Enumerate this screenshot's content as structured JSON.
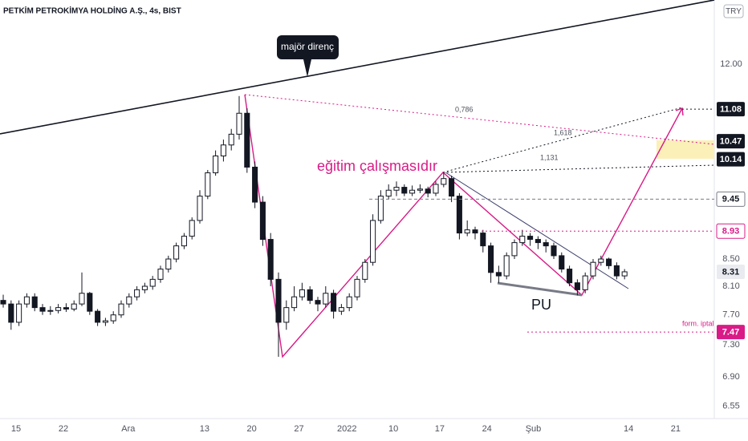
{
  "header": {
    "symbol": "PETKİM PETROKİMYA HOLDİNG A.Ş., 4s, BIST",
    "currency": "TRY"
  },
  "chart_data": {
    "type": "candlestick",
    "log_scale": true,
    "up_color": "#ffffff",
    "down_color": "#131722",
    "ohlc": [
      [
        7.9,
        7.98,
        7.8,
        7.85
      ],
      [
        7.85,
        7.9,
        7.5,
        7.6
      ],
      [
        7.6,
        7.9,
        7.55,
        7.85
      ],
      [
        7.85,
        8.0,
        7.8,
        7.95
      ],
      [
        7.95,
        8.0,
        7.75,
        7.8
      ],
      [
        7.8,
        7.85,
        7.7,
        7.75
      ],
      [
        7.75,
        7.82,
        7.7,
        7.76
      ],
      [
        7.76,
        7.85,
        7.72,
        7.8
      ],
      [
        7.8,
        7.86,
        7.74,
        7.78
      ],
      [
        7.78,
        7.9,
        7.75,
        7.85
      ],
      [
        7.85,
        8.3,
        7.82,
        8.0
      ],
      [
        8.0,
        8.02,
        7.7,
        7.75
      ],
      [
        7.75,
        7.78,
        7.55,
        7.6
      ],
      [
        7.6,
        7.66,
        7.55,
        7.62
      ],
      [
        7.62,
        7.75,
        7.58,
        7.7
      ],
      [
        7.7,
        7.9,
        7.66,
        7.85
      ],
      [
        7.85,
        8.0,
        7.8,
        7.95
      ],
      [
        7.95,
        8.1,
        7.9,
        8.05
      ],
      [
        8.05,
        8.15,
        8.0,
        8.1
      ],
      [
        8.1,
        8.25,
        8.05,
        8.2
      ],
      [
        8.2,
        8.4,
        8.15,
        8.35
      ],
      [
        8.35,
        8.55,
        8.3,
        8.5
      ],
      [
        8.5,
        8.75,
        8.45,
        8.7
      ],
      [
        8.7,
        8.9,
        8.65,
        8.85
      ],
      [
        8.85,
        9.15,
        8.8,
        9.1
      ],
      [
        9.1,
        9.6,
        9.05,
        9.5
      ],
      [
        9.5,
        9.95,
        9.45,
        9.9
      ],
      [
        9.9,
        10.3,
        9.85,
        10.2
      ],
      [
        10.2,
        10.5,
        10.1,
        10.4
      ],
      [
        10.4,
        10.7,
        10.3,
        10.6
      ],
      [
        10.6,
        11.34,
        10.5,
        11.0
      ],
      [
        11.0,
        11.1,
        9.9,
        10.0
      ],
      [
        10.0,
        10.1,
        9.3,
        9.4
      ],
      [
        9.4,
        9.5,
        8.7,
        8.8
      ],
      [
        8.8,
        8.9,
        8.1,
        8.2
      ],
      [
        8.2,
        8.3,
        7.15,
        7.6
      ],
      [
        7.6,
        7.9,
        7.5,
        7.8
      ],
      [
        7.8,
        8.1,
        7.75,
        7.95
      ],
      [
        7.95,
        8.15,
        7.9,
        8.05
      ],
      [
        8.05,
        8.1,
        7.85,
        7.9
      ],
      [
        7.9,
        7.95,
        7.75,
        7.85
      ],
      [
        7.85,
        8.1,
        7.8,
        8.0
      ],
      [
        8.0,
        8.05,
        7.65,
        7.75
      ],
      [
        7.75,
        7.85,
        7.7,
        7.8
      ],
      [
        7.8,
        8.0,
        7.75,
        7.95
      ],
      [
        7.95,
        8.25,
        7.9,
        8.2
      ],
      [
        8.2,
        8.5,
        8.15,
        8.45
      ],
      [
        8.45,
        9.2,
        8.4,
        9.1
      ],
      [
        9.1,
        9.6,
        9.05,
        9.5
      ],
      [
        9.5,
        9.7,
        9.45,
        9.6
      ],
      [
        9.6,
        9.75,
        9.5,
        9.65
      ],
      [
        9.65,
        9.7,
        9.5,
        9.55
      ],
      [
        9.55,
        9.68,
        9.5,
        9.6
      ],
      [
        9.6,
        9.7,
        9.55,
        9.62
      ],
      [
        9.62,
        9.66,
        9.48,
        9.55
      ],
      [
        9.55,
        9.75,
        9.5,
        9.7
      ],
      [
        9.7,
        9.91,
        9.65,
        9.8
      ],
      [
        9.8,
        9.85,
        9.4,
        9.5
      ],
      [
        9.5,
        9.55,
        8.8,
        8.9
      ],
      [
        8.9,
        9.1,
        8.85,
        8.95
      ],
      [
        8.95,
        9.0,
        8.8,
        8.9
      ],
      [
        8.9,
        8.95,
        8.6,
        8.7
      ],
      [
        8.7,
        8.75,
        8.15,
        8.3
      ],
      [
        8.3,
        8.4,
        8.15,
        8.25
      ],
      [
        8.25,
        8.6,
        8.2,
        8.55
      ],
      [
        8.55,
        8.8,
        8.5,
        8.75
      ],
      [
        8.75,
        8.95,
        8.7,
        8.85
      ],
      [
        8.85,
        8.9,
        8.7,
        8.8
      ],
      [
        8.8,
        8.85,
        8.65,
        8.75
      ],
      [
        8.75,
        8.8,
        8.6,
        8.7
      ],
      [
        8.7,
        8.75,
        8.5,
        8.55
      ],
      [
        8.55,
        8.6,
        8.3,
        8.35
      ],
      [
        8.35,
        8.4,
        8.1,
        8.15
      ],
      [
        8.15,
        8.2,
        7.97,
        8.05
      ],
      [
        8.05,
        8.3,
        8.0,
        8.25
      ],
      [
        8.25,
        8.5,
        8.2,
        8.45
      ],
      [
        8.45,
        8.55,
        8.4,
        8.5
      ],
      [
        8.5,
        8.52,
        8.35,
        8.4
      ],
      [
        8.4,
        8.45,
        8.2,
        8.25
      ],
      [
        8.25,
        8.35,
        8.2,
        8.31
      ]
    ],
    "xlim": [
      -0.41,
      90.41
    ],
    "xticks": [
      {
        "value": 1.63,
        "label": "15"
      },
      {
        "value": 7.65,
        "label": "22"
      },
      {
        "value": 15.9,
        "label": "Ara"
      },
      {
        "value": 25.6,
        "label": "13"
      },
      {
        "value": 31.6,
        "label": "20"
      },
      {
        "value": 37.6,
        "label": "27"
      },
      {
        "value": 43.7,
        "label": "2022"
      },
      {
        "value": 49.6,
        "label": "10"
      },
      {
        "value": 55.5,
        "label": "17"
      },
      {
        "value": 61.5,
        "label": "24"
      },
      {
        "value": 67.4,
        "label": "Şub"
      },
      {
        "value": 79.5,
        "label": "14"
      },
      {
        "value": 85.5,
        "label": "21"
      }
    ],
    "ylim": [
      6.41,
      13.44
    ],
    "yticks": [
      6.55,
      {
        "value": 6.9,
        "label": "6.90"
      },
      {
        "value": 7.3,
        "label": "7.30"
      },
      {
        "value": 7.7,
        "label": "7.70"
      },
      {
        "value": 8.1,
        "label": "8.10"
      },
      {
        "value": 8.5,
        "label": "8.50"
      },
      {
        "value": 12,
        "label": "12.00"
      }
    ],
    "price_levels": [
      11.08,
      10.47,
      10.14,
      9.45,
      8.93,
      8.31,
      7.47
    ],
    "annotations": {
      "callout": "majör direnç",
      "note": "eğitim çalışmasıdır",
      "fib_a": "0,786",
      "fib_b": "1,618",
      "fib_c": "1,131",
      "pattern": "PU",
      "invalidation": "form. iptal"
    }
  }
}
